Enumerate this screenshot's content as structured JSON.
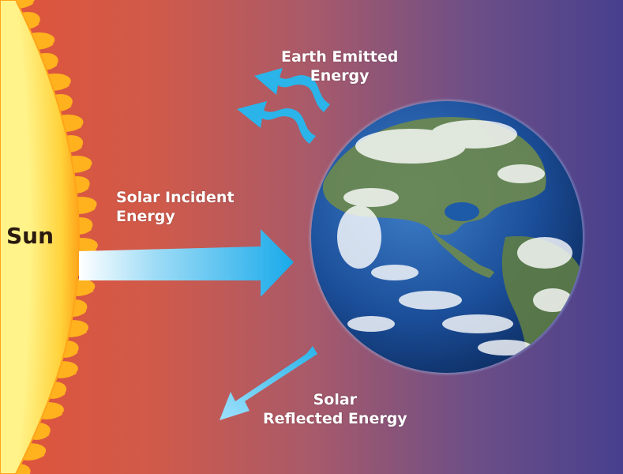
{
  "labels": {
    "sun": "Sun",
    "earth_emitted_line1": "Earth Emitted",
    "earth_emitted_line2": "Energy",
    "solar_incident_line1": "Solar Incident",
    "solar_incident_line2": "Energy",
    "solar_reflected_line1": "Solar",
    "solar_reflected_line2": "Reflected Energy"
  },
  "colors": {
    "background_left": "#e0543a",
    "background_right": "#47408e",
    "sun": "#ffb81c",
    "arrow": "#2ab4ea",
    "earth_ocean": "#1a4f9a"
  }
}
